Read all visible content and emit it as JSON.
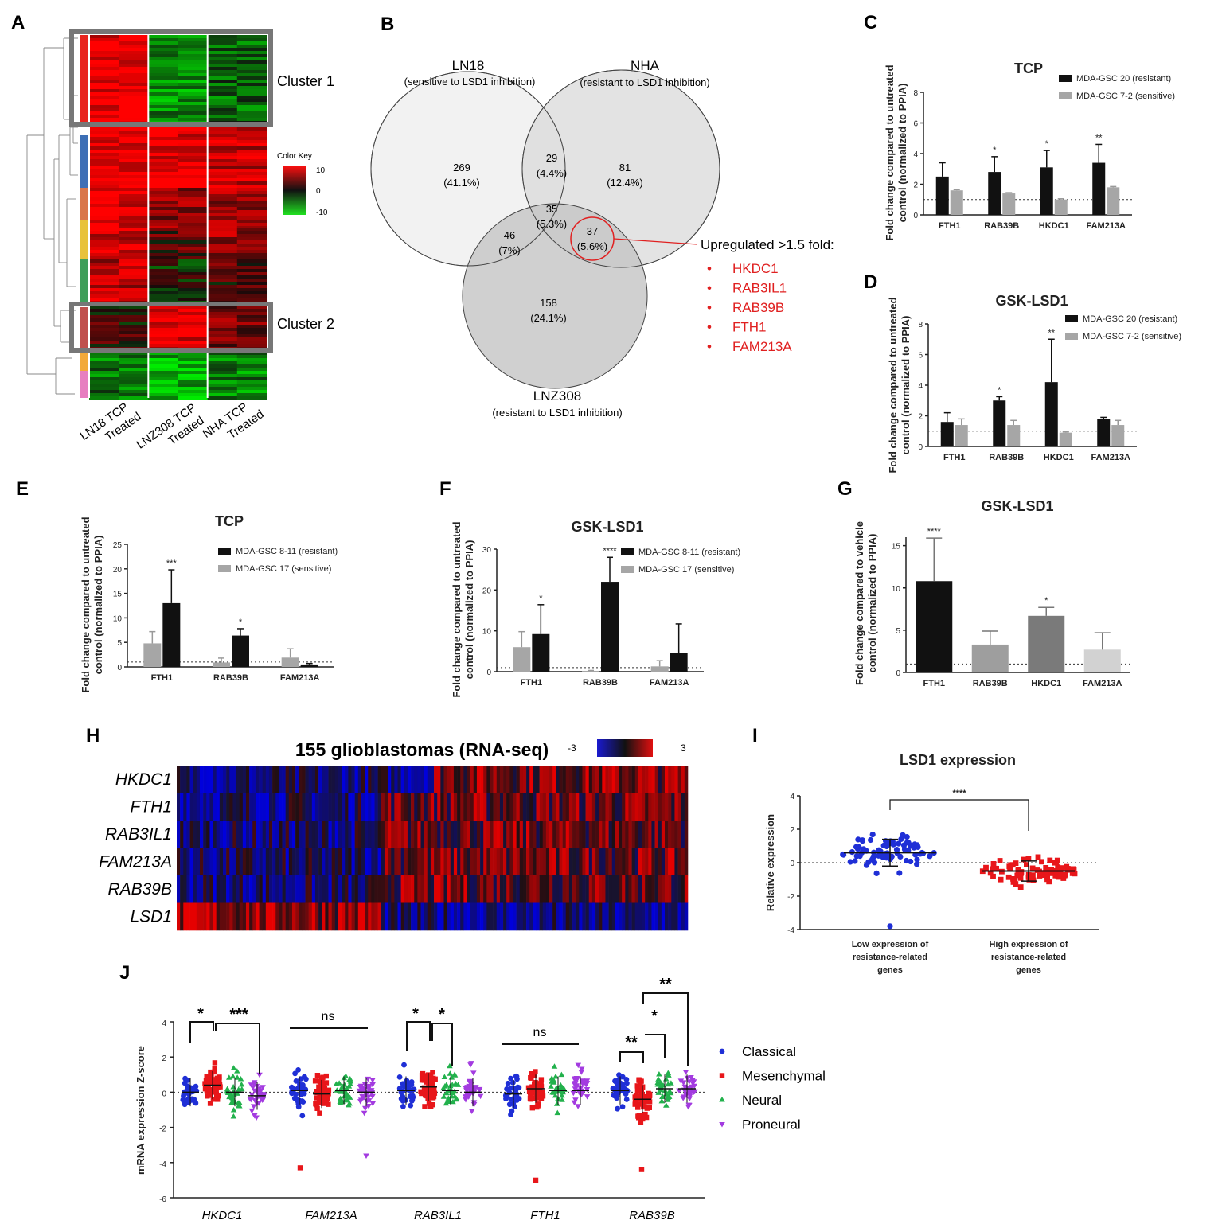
{
  "panel_labels": [
    "A",
    "B",
    "C",
    "D",
    "E",
    "F",
    "G",
    "H",
    "I",
    "J"
  ],
  "panelA": {
    "cluster1": "Cluster 1",
    "cluster2": "Cluster 2",
    "color_key_title": "Color Key",
    "color_key_ticks": [
      "10",
      "0",
      "-10"
    ],
    "col_labels": [
      [
        "LN18 TCP",
        "Treated"
      ],
      [
        "LNZ308 TCP",
        "Treated"
      ],
      [
        "NHA TCP",
        "Treated"
      ]
    ],
    "side_colors": [
      "#e8251f",
      "#ffffff",
      "#3d6fb6",
      "#d9774a",
      "#e8c23a",
      "#3f9e5a",
      "#ffffff",
      "#c0504d",
      "#ffffff",
      "#f2a93b",
      "#e77fc0"
    ]
  },
  "panelB": {
    "circles": [
      {
        "name": "LN18",
        "sub": "(sensitive to LSD1 inhibition)",
        "fill": "#f1f1f1"
      },
      {
        "name": "NHA",
        "sub": "(resistant to LSD1 inhibition)",
        "fill": "#d9d9d9"
      },
      {
        "name": "LNZ308",
        "sub": "(resistant to LSD1 inhibition)",
        "fill": "#c4c4c4"
      }
    ],
    "regions": [
      {
        "n": "269",
        "p": "(41.1%)"
      },
      {
        "n": "29",
        "p": "(4.4%)"
      },
      {
        "n": "81",
        "p": "(12.4%)"
      },
      {
        "n": "35",
        "p": "(5.3%)"
      },
      {
        "n": "46",
        "p": "(7%)"
      },
      {
        "n": "37",
        "p": "(5.6%)"
      },
      {
        "n": "158",
        "p": "(24.1%)"
      }
    ],
    "upreg_title": "Upregulated >1.5 fold:",
    "upreg_genes": [
      "HKDC1",
      "RAB3IL1",
      "RAB39B",
      "FTH1",
      "FAM213A"
    ],
    "bullet": "•"
  },
  "bar_ylabel": [
    "Fold change compared to untreated",
    "control (normalized to PPIA)"
  ],
  "bar_ylabel_G": [
    "Fold change compared to vehicle",
    "control (normalized to PPIA)"
  ],
  "chart_data": [
    {
      "id": "C",
      "type": "bar",
      "title": "TCP",
      "categories": [
        "FTH1",
        "RAB39B",
        "HKDC1",
        "FAM213A"
      ],
      "ylim": [
        0,
        8
      ],
      "yticks": [
        0,
        2,
        4,
        6,
        8
      ],
      "series": [
        {
          "name": "MDA-GSC 20 (resistant)",
          "color": "#111111",
          "values": [
            2.5,
            2.8,
            3.1,
            3.4
          ],
          "err": [
            0.9,
            1.0,
            1.1,
            1.2
          ]
        },
        {
          "name": "MDA-GSC 7-2 (sensitive)",
          "color": "#a6a6a6",
          "values": [
            1.6,
            1.4,
            1.0,
            1.8
          ],
          "err": [
            0.05,
            0.05,
            0.05,
            0.05
          ]
        }
      ],
      "sig": [
        "",
        "*",
        "*",
        "**"
      ],
      "ref": 1
    },
    {
      "id": "D",
      "type": "bar",
      "title": "GSK-LSD1",
      "categories": [
        "FTH1",
        "RAB39B",
        "HKDC1",
        "FAM213A"
      ],
      "ylim": [
        0,
        8
      ],
      "yticks": [
        0,
        2,
        4,
        6,
        8
      ],
      "series": [
        {
          "name": "MDA-GSC 20 (resistant)",
          "color": "#111111",
          "values": [
            1.6,
            3.0,
            4.2,
            1.8
          ],
          "err": [
            0.6,
            0.25,
            2.8,
            0.1
          ]
        },
        {
          "name": "MDA-GSC 7-2 (sensitive)",
          "color": "#a6a6a6",
          "values": [
            1.4,
            1.4,
            0.9,
            1.4
          ],
          "err": [
            0.4,
            0.3,
            0.05,
            0.3
          ]
        }
      ],
      "sig": [
        "",
        "*",
        "**",
        ""
      ],
      "ref": 1
    },
    {
      "id": "E",
      "type": "bar",
      "title": "TCP",
      "categories": [
        "FTH1",
        "RAB39B",
        "FAM213A"
      ],
      "ylim": [
        0,
        25
      ],
      "yticks": [
        0,
        5,
        10,
        15,
        20,
        25
      ],
      "series": [
        {
          "name": "MDA-GSC 17 (sensitive)",
          "color": "#a6a6a6",
          "values": [
            4.8,
            0.9,
            1.9
          ],
          "err": [
            2.4,
            0.9,
            1.8
          ]
        },
        {
          "name": "MDA-GSC 8-11 (resistant)",
          "color": "#111111",
          "values": [
            13.0,
            6.4,
            0.5
          ],
          "err": [
            6.8,
            1.4,
            0.2
          ]
        }
      ],
      "legend_order": [
        1,
        0
      ],
      "sig": [
        "***",
        "*",
        ""
      ],
      "ref": 1
    },
    {
      "id": "F",
      "type": "bar",
      "title": "GSK-LSD1",
      "categories": [
        "FTH1",
        "RAB39B",
        "FAM213A"
      ],
      "ylim": [
        0,
        30
      ],
      "yticks": [
        0,
        10,
        20,
        30
      ],
      "series": [
        {
          "name": "MDA-GSC 17 (sensitive)",
          "color": "#a6a6a6",
          "values": [
            6.0,
            0.2,
            1.3
          ],
          "err": [
            3.8,
            0.1,
            1.4
          ]
        },
        {
          "name": "MDA-GSC 8-11 (resistant)",
          "color": "#111111",
          "values": [
            9.2,
            22.0,
            4.5
          ],
          "err": [
            7.2,
            6.0,
            7.2
          ]
        }
      ],
      "legend_order": [
        1,
        0
      ],
      "sig": [
        "*",
        "****",
        ""
      ],
      "ref": 1
    },
    {
      "id": "G",
      "type": "bar",
      "title": "GSK-LSD1",
      "categories": [
        "FTH1",
        "RAB39B",
        "HKDC1",
        "FAM213A"
      ],
      "ylim": [
        0,
        16
      ],
      "yticks": [
        0,
        5,
        10,
        15
      ],
      "values": [
        10.8,
        3.3,
        6.7,
        2.7
      ],
      "err": [
        5.1,
        1.6,
        1.0,
        2.0
      ],
      "colors": [
        "#111111",
        "#9e9e9e",
        "#7a7a7a",
        "#d2d2d2"
      ],
      "sig": [
        "****",
        "",
        "*",
        ""
      ],
      "ref": 1
    },
    {
      "id": "H",
      "type": "heatmap",
      "title": "155 glioblastomas (RNA-seq)",
      "rows": [
        "HKDC1",
        "FTH1",
        "RAB3IL1",
        "FAM213A",
        "RAB39B",
        "LSD1"
      ],
      "scale": [
        "-3",
        "3"
      ],
      "columns": 155
    },
    {
      "id": "I",
      "type": "scatter",
      "title": "LSD1 expression",
      "ylabel": "Relative expression",
      "ylim": [
        -4,
        4
      ],
      "yticks": [
        -4,
        -2,
        0,
        2,
        4
      ],
      "groups": [
        {
          "label": [
            "Low expression of",
            "resistance-related",
            "genes"
          ],
          "color": "#1f2fd6",
          "mean": 0.6,
          "sd": 0.8
        },
        {
          "label": [
            "High expression of",
            "resistance-related",
            "genes"
          ],
          "color": "#e8161a",
          "mean": -0.5,
          "sd": 0.6
        }
      ],
      "sig": "****"
    },
    {
      "id": "J",
      "type": "scatter",
      "ylabel": "mRNA expression Z-score",
      "ylim": [
        -6,
        4
      ],
      "yticks": [
        -6,
        -4,
        -2,
        0,
        2,
        4
      ],
      "genes": [
        "HKDC1",
        "FAM213A",
        "RAB3IL1",
        "FTH1",
        "RAB39B"
      ],
      "series": [
        {
          "name": "Classical",
          "color": "#1f2fd6",
          "marker": "circle"
        },
        {
          "name": "Mesenchymal",
          "color": "#e8161a",
          "marker": "square"
        },
        {
          "name": "Neural",
          "color": "#22b14c",
          "marker": "triangle-up"
        },
        {
          "name": "Proneural",
          "color": "#a33be0",
          "marker": "triangle-down"
        }
      ],
      "medians": [
        [
          0.0,
          0.4,
          0.0,
          -0.2
        ],
        [
          0.1,
          -0.1,
          0.1,
          0.0
        ],
        [
          0.1,
          0.3,
          0.1,
          0.0
        ],
        [
          -0.1,
          0.2,
          0.1,
          0.1
        ],
        [
          0.1,
          -0.4,
          0.2,
          0.2
        ]
      ],
      "sig_labels": [
        "*",
        "***",
        "ns",
        "*",
        "*",
        "ns",
        "**",
        "*",
        "**"
      ]
    }
  ]
}
